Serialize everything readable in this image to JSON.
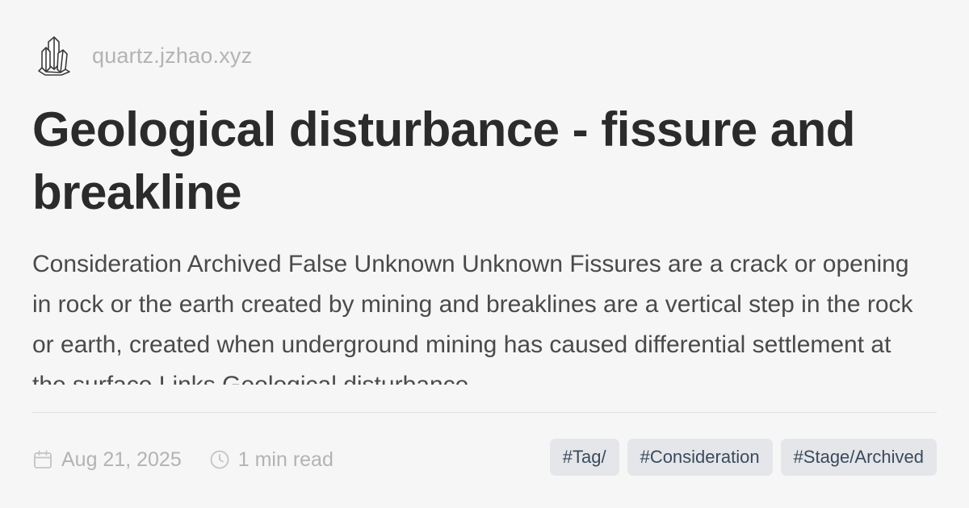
{
  "site": {
    "logo_icon": "quartz-crystal-icon",
    "name": "quartz.jzhao.xyz"
  },
  "title": "Geological disturbance - fissure and breakline",
  "description": "Consideration Archived False Unknown Unknown Fissures are a crack or opening in rock or the earth created by mining and breaklines are a vertical step in the rock or earth, created when underground mining has caused differential settlement at the surface Links Geological disturbance",
  "meta": {
    "date_icon": "calendar-icon",
    "date": "Aug 21, 2025",
    "read_icon": "clock-icon",
    "read_time": "1 min read"
  },
  "tags": [
    {
      "label": "#Tag/"
    },
    {
      "label": "#Consideration"
    },
    {
      "label": "#Stage/Archived"
    }
  ],
  "colors": {
    "background": "#f6f6f7",
    "title": "#2b2b2b",
    "description": "#4a4a4a",
    "muted": "#b3b3b3",
    "tag_background": "#e4e6e9",
    "tag_text": "#3a4a5c"
  }
}
